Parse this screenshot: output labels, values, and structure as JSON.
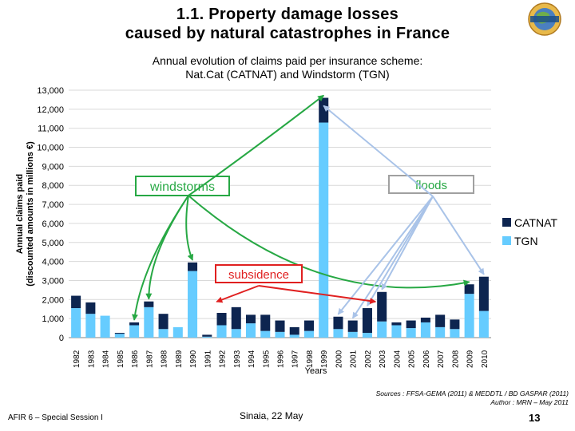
{
  "slide": {
    "title_line1": "1.1. Property damage losses",
    "title_line2": "caused by natural catastrophes in France",
    "subtitle_line1": "Annual evolution of claims paid per insurance scheme:",
    "subtitle_line2": "Nat.Cat (CATNAT) and Windstorm (TGN)",
    "footer_left": "AFIR 6 – Special Session I",
    "footer_center": "Sinaia, 22 May",
    "page_number": "13",
    "sources_line1": "Sources : FFSA-GEMA (2011) & MEDDTL / BD GASPAR (2011)",
    "sources_line2": "Author : MRN – May 2011",
    "logo_icon": "globe-logo-icon"
  },
  "colors": {
    "catnat": "#0d2550",
    "tgn": "#66ccff",
    "grid": "#d9d9d9",
    "windstorm_arrow": "#27a844",
    "flood_arrow": "#a9c3e8",
    "subsidence_arrow": "#e02020",
    "windstorm_box": "#27a844",
    "flood_box": "#a0a0a0",
    "subsidence_box": "#e02020"
  },
  "chart_data": {
    "type": "bar",
    "stacked": true,
    "ylabel_line1": "Annual claims paid",
    "ylabel_line2": "(discounted amounts in millions €)",
    "xlabel": "Years",
    "ylim": [
      0,
      13000
    ],
    "yticks": [
      0,
      1000,
      2000,
      3000,
      4000,
      5000,
      6000,
      7000,
      8000,
      9000,
      10000,
      11000,
      12000,
      13000
    ],
    "ytick_labels": [
      "0",
      "1,000",
      "2,000",
      "3,000",
      "4,000",
      "5,000",
      "6,000",
      "7,000",
      "8,000",
      "9,000",
      "10,000",
      "11,000",
      "12,000",
      "13,000"
    ],
    "grid": true,
    "legend_position": "right",
    "categories": [
      "1982",
      "1983",
      "1984",
      "1985",
      "1986",
      "1987",
      "1988",
      "1989",
      "1990",
      "1991",
      "1992",
      "1993",
      "1994",
      "1995",
      "1996",
      "1997",
      "1998",
      "1999",
      "2000",
      "2001",
      "2002",
      "2003",
      "2004",
      "2005",
      "2006",
      "2007",
      "2008",
      "2009",
      "2010"
    ],
    "series": [
      {
        "name": "TGN",
        "values": [
          1550,
          1250,
          1150,
          200,
          650,
          1600,
          450,
          550,
          3500,
          50,
          650,
          450,
          750,
          350,
          300,
          150,
          350,
          11300,
          450,
          300,
          250,
          850,
          650,
          500,
          800,
          550,
          450,
          2300,
          1400
        ]
      },
      {
        "name": "CATNAT",
        "values": [
          650,
          600,
          0,
          50,
          150,
          300,
          800,
          0,
          450,
          100,
          650,
          1150,
          450,
          850,
          600,
          400,
          550,
          1300,
          650,
          600,
          1300,
          1550,
          150,
          400,
          250,
          650,
          500,
          500,
          1800
        ]
      }
    ],
    "annotations": [
      {
        "label": "windstorms",
        "targets": [
          "1986",
          "1987",
          "1990",
          "1999",
          "2009"
        ]
      },
      {
        "label": "floods",
        "targets": [
          "1999",
          "2000",
          "2001",
          "2002",
          "2003",
          "2010"
        ]
      },
      {
        "label": "subsidence",
        "targets": [
          "1991",
          "2003"
        ]
      }
    ]
  }
}
